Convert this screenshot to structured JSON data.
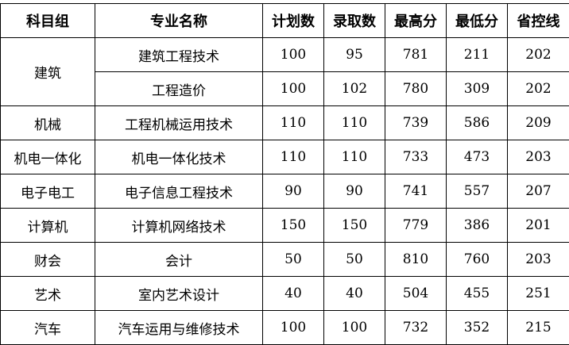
{
  "headers": [
    "科目组",
    "专业名称",
    "计划数",
    "录取数",
    "最高分",
    "最低分",
    "省控线"
  ],
  "rows": [
    {
      "group": "建筑",
      "major": "建筑工程技术",
      "plan": "100",
      "admitted": "95",
      "max": "781",
      "min": "211",
      "control": "202"
    },
    {
      "group": "建筑",
      "major": "工程造价",
      "plan": "100",
      "admitted": "102",
      "max": "780",
      "min": "309",
      "control": "202"
    },
    {
      "group": "机械",
      "major": "工程机械运用技术",
      "plan": "110",
      "admitted": "110",
      "max": "739",
      "min": "586",
      "control": "209"
    },
    {
      "group": "机电一体化",
      "major": "机电一体化技术",
      "plan": "110",
      "admitted": "110",
      "max": "733",
      "min": "473",
      "control": "203"
    },
    {
      "group": "电子电工",
      "major": "电子信息工程技术",
      "plan": "90",
      "admitted": "90",
      "max": "741",
      "min": "557",
      "control": "207"
    },
    {
      "group": "计算机",
      "major": "计算机网络技术",
      "plan": "150",
      "admitted": "150",
      "max": "779",
      "min": "386",
      "control": "201"
    },
    {
      "group": "财会",
      "major": "会计",
      "plan": "50",
      "admitted": "50",
      "max": "810",
      "min": "760",
      "control": "203"
    },
    {
      "group": "艺术",
      "major": "室内艺术设计",
      "plan": "40",
      "admitted": "40",
      "max": "504",
      "min": "455",
      "control": "251"
    },
    {
      "group": "汽车",
      "major": "汽车运用与维修技术",
      "plan": "100",
      "admitted": "100",
      "max": "732",
      "min": "352",
      "control": "215"
    }
  ]
}
